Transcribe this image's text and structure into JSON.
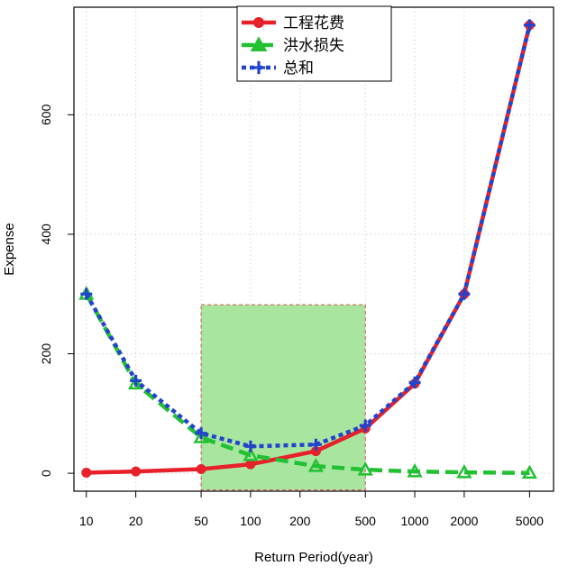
{
  "chart_data": {
    "type": "line",
    "title": "",
    "xlabel": "Return Period(year)",
    "ylabel": "Expense",
    "x_scale": "log",
    "x_ticks": [
      10,
      20,
      50,
      100,
      200,
      500,
      1000,
      2000,
      5000
    ],
    "x_tick_labels": [
      "10",
      "20",
      "50",
      "100",
      "200",
      "500",
      "1000",
      "2000",
      "5000"
    ],
    "y_ticks": [
      0,
      200,
      400,
      600
    ],
    "y_tick_labels": [
      "0",
      "200",
      "400",
      "600"
    ],
    "xlim": [
      8.4,
      7000
    ],
    "ylim": [
      -30,
      780
    ],
    "grid": true,
    "legend_position": "top-center",
    "highlight_region": {
      "x": [
        50,
        500
      ],
      "y": [
        -28,
        282
      ],
      "color": "#a8e6a0",
      "border_color": "#d9534f"
    },
    "series": [
      {
        "name": "工程花费",
        "color": "#e8202a",
        "marker": "circle",
        "line_style": "solid",
        "x": [
          10,
          20,
          50,
          100,
          250,
          500,
          1000,
          2000,
          5000
        ],
        "y": [
          1,
          3,
          7,
          15,
          37,
          75,
          150,
          300,
          750
        ]
      },
      {
        "name": "洪水损失",
        "color": "#22c033",
        "marker": "triangle",
        "line_style": "dashed",
        "x": [
          10,
          20,
          50,
          100,
          250,
          500,
          1000,
          2000,
          5000
        ],
        "y": [
          300,
          150,
          60,
          30,
          12,
          6,
          3,
          1.5,
          0.6
        ]
      },
      {
        "name": "总和",
        "color": "#2244cc",
        "marker": "plus",
        "line_style": "dotted",
        "x": [
          10,
          20,
          50,
          100,
          250,
          500,
          1000,
          2000,
          5000
        ],
        "y": [
          300,
          155,
          67,
          45,
          48,
          80,
          152,
          300,
          750
        ]
      }
    ]
  }
}
